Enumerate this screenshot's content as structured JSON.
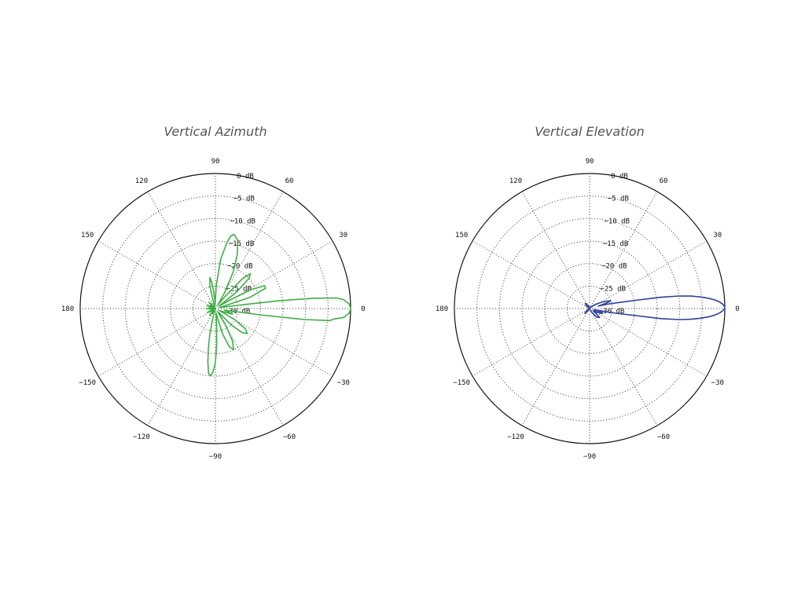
{
  "chart_data": [
    {
      "type": "line",
      "title": "Vertical Azimuth",
      "coordinate_system": "polar",
      "theta_ticks": [
        {
          "deg": 0,
          "label": "0"
        },
        {
          "deg": 30,
          "label": "30"
        },
        {
          "deg": 60,
          "label": "60"
        },
        {
          "deg": 90,
          "label": "90"
        },
        {
          "deg": 120,
          "label": "120"
        },
        {
          "deg": 150,
          "label": "150"
        },
        {
          "deg": 180,
          "label": "180"
        },
        {
          "deg": -150,
          "label": "−150"
        },
        {
          "deg": -120,
          "label": "−120"
        },
        {
          "deg": -90,
          "label": "−90"
        },
        {
          "deg": -60,
          "label": "−60"
        },
        {
          "deg": -30,
          "label": "−30"
        }
      ],
      "r_ticks": [
        {
          "value": 0,
          "label": "0 dB"
        },
        {
          "value": -5,
          "label": "−5 dB"
        },
        {
          "value": -10,
          "label": "−10 dB"
        },
        {
          "value": -15,
          "label": "−15 dB"
        },
        {
          "value": -20,
          "label": "−20 dB"
        },
        {
          "value": -25,
          "label": "−25 dB"
        },
        {
          "value": -30,
          "label": "−30 dB"
        }
      ],
      "rlim": [
        -30,
        0
      ],
      "grid": true,
      "color": "#3cb043",
      "series": [
        {
          "theta": [
            0,
            2,
            4,
            5,
            6,
            7,
            8,
            10,
            14,
            18,
            22,
            25,
            28,
            30,
            34,
            38,
            42,
            45,
            48,
            52,
            56,
            60,
            64,
            68,
            72,
            76,
            78,
            80,
            84,
            88,
            90,
            92,
            94,
            96,
            98,
            100,
            104,
            108,
            112,
            116,
            120,
            124,
            130,
            136,
            142,
            148,
            154,
            160,
            166,
            172,
            176,
            180,
            184,
            188,
            194,
            200,
            206,
            212,
            218,
            224,
            230,
            236,
            242,
            248,
            252,
            256,
            258,
            260,
            262,
            264,
            266,
            268,
            270,
            272,
            274,
            278,
            282,
            286,
            290,
            294,
            298,
            302,
            306,
            310,
            314,
            318,
            322,
            326,
            330,
            334,
            338,
            342,
            346,
            350,
            352,
            353,
            354,
            355,
            356,
            358,
            360
          ],
          "r": [
            0,
            -0.3,
            -1.5,
            -3,
            -8,
            -16,
            -24,
            -28,
            -29,
            -22,
            -18,
            -18,
            -21,
            -26,
            -29,
            -24,
            -20,
            -19,
            -21,
            -27,
            -29,
            -26,
            -21,
            -17,
            -14,
            -13,
            -13.5,
            -15,
            -19,
            -25,
            -28,
            -29,
            -28,
            -26,
            -24,
            -23,
            -25,
            -29,
            -29.5,
            -30,
            -30,
            -30,
            -29,
            -28,
            -29,
            -30,
            -29,
            -28,
            -29,
            -30,
            -29,
            -28,
            -29,
            -30,
            -30,
            -29,
            -28,
            -29,
            -30,
            -29,
            -28,
            -29,
            -30,
            -30,
            -29,
            -27,
            -24,
            -21,
            -18,
            -15.5,
            -15,
            -16,
            -18,
            -22,
            -26,
            -29,
            -28,
            -24,
            -21,
            -20,
            -22,
            -26,
            -29,
            -29,
            -25,
            -22,
            -21,
            -22,
            -25,
            -29,
            -28,
            -26,
            -27,
            -28,
            -20,
            -10,
            -4.5,
            -3.5,
            -1.5,
            -0.3,
            0
          ]
        }
      ]
    },
    {
      "type": "line",
      "title": "Vertical Elevation",
      "coordinate_system": "polar",
      "theta_ticks": [
        {
          "deg": 0,
          "label": "0"
        },
        {
          "deg": 30,
          "label": "30"
        },
        {
          "deg": 60,
          "label": "60"
        },
        {
          "deg": 90,
          "label": "90"
        },
        {
          "deg": 120,
          "label": "120"
        },
        {
          "deg": 150,
          "label": "150"
        },
        {
          "deg": 180,
          "label": "180"
        },
        {
          "deg": -150,
          "label": "−150"
        },
        {
          "deg": -120,
          "label": "−120"
        },
        {
          "deg": -90,
          "label": "−90"
        },
        {
          "deg": -60,
          "label": "−60"
        },
        {
          "deg": -30,
          "label": "−30"
        }
      ],
      "r_ticks": [
        {
          "value": 0,
          "label": "0 dB"
        },
        {
          "value": -5,
          "label": "−5 dB"
        },
        {
          "value": -10,
          "label": "−10 dB"
        },
        {
          "value": -15,
          "label": "−15 dB"
        },
        {
          "value": -20,
          "label": "−20 dB"
        },
        {
          "value": -25,
          "label": "−25 dB"
        },
        {
          "value": -30,
          "label": "−30 dB"
        }
      ],
      "rlim": [
        -30,
        0
      ],
      "grid": true,
      "color": "#2e3f9a",
      "series": [
        {
          "theta": [
            0,
            1,
            2,
            3,
            4,
            5,
            6,
            7,
            8,
            9,
            10,
            12,
            14,
            16,
            18,
            20,
            24,
            28,
            32,
            36,
            40,
            45,
            50,
            55,
            60,
            70,
            80,
            90,
            100,
            110,
            120,
            130,
            140,
            150,
            160,
            170,
            180,
            190,
            200,
            210,
            220,
            225,
            230,
            240,
            250,
            260,
            270,
            280,
            290,
            300,
            310,
            318,
            322,
            326,
            330,
            334,
            338,
            342,
            344,
            346,
            348,
            350,
            352,
            353,
            354,
            355,
            356,
            357,
            358,
            359,
            360
          ],
          "r": [
            0,
            -0.1,
            -0.5,
            -1.2,
            -2.2,
            -3.6,
            -5.3,
            -7.3,
            -10,
            -14,
            -19,
            -24,
            -26,
            -28,
            -26,
            -25,
            -26,
            -27,
            -28,
            -28.5,
            -29,
            -29.5,
            -29.5,
            -29.5,
            -30,
            -30,
            -30,
            -30,
            -30,
            -29.5,
            -29,
            -28.5,
            -29,
            -30,
            -30,
            -30,
            -30,
            -30,
            -30,
            -29.5,
            -29,
            -28.5,
            -29,
            -30,
            -30,
            -30,
            -30,
            -30,
            -30,
            -29,
            -27.5,
            -27,
            -28,
            -29,
            -29,
            -28,
            -27,
            -27,
            -28,
            -29,
            -28,
            -24,
            -14,
            -10,
            -7.3,
            -5.3,
            -3.6,
            -2.2,
            -1.2,
            -0.5,
            0
          ]
        }
      ]
    }
  ]
}
